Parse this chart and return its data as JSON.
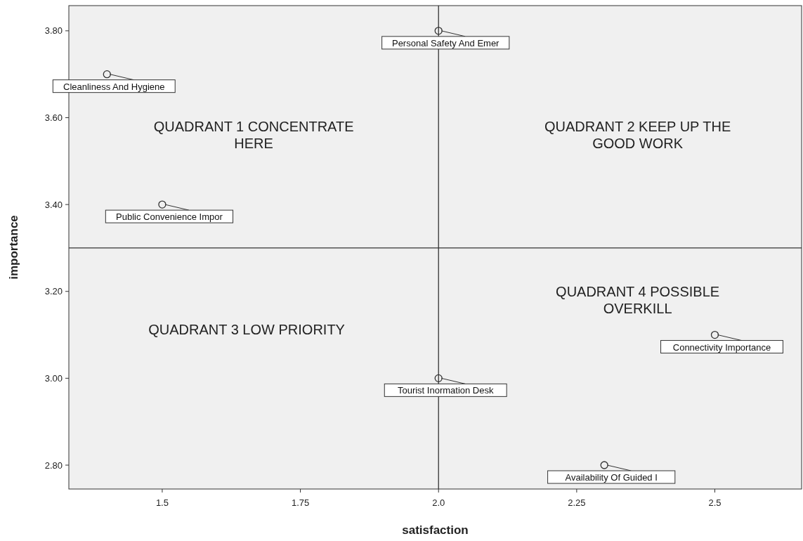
{
  "chart_data": {
    "type": "scatter",
    "xlabel": "satisfaction",
    "ylabel": "importance",
    "x": [
      2.0,
      1.4,
      1.5,
      2.5,
      2.0,
      2.3
    ],
    "values": [
      3.8,
      3.7,
      3.4,
      3.1,
      3.0,
      2.8
    ],
    "color": "#333333",
    "marker": "circle",
    "grid": false,
    "xlim": [
      1.331,
      2.657
    ],
    "ylim": [
      2.745,
      3.858
    ],
    "xticks": [
      1.5,
      1.75,
      {
        "value": 2.0,
        "label": "2.0"
      },
      2.25,
      2.5
    ],
    "yticks": [
      {
        "value": 2.8,
        "label": "2.80"
      },
      {
        "value": 3.0,
        "label": "3.00"
      },
      {
        "value": 3.2,
        "label": "3.20"
      },
      {
        "value": 3.4,
        "label": "3.40"
      },
      {
        "value": 3.6,
        "label": "3.60"
      },
      {
        "value": 3.8,
        "label": "3.80"
      }
    ],
    "ref_lines": [
      {
        "axis": "x",
        "value": 2.0
      },
      {
        "axis": "y",
        "value": 3.3
      }
    ],
    "annotations": [
      "QUADRANT 1 CONCENTRATE HERE",
      "QUADRANT 2 KEEP UP THE GOOD WORK",
      "QUADRANT 3 LOW PRIORITY",
      "QUADRANT 4 POSSIBLE OVERKILL",
      {
        "text": "Personal Safety And Emer",
        "x": 2.0,
        "y": 3.8
      },
      {
        "text": "Cleanliness And Hygiene",
        "x": 1.4,
        "y": 3.7
      },
      {
        "text": "Public Convenience Impor",
        "x": 1.5,
        "y": 3.4
      },
      {
        "text": "Connectivity Importance",
        "x": 2.5,
        "y": 3.1
      },
      {
        "text": "Tourist Inormation Desk",
        "x": 2.0,
        "y": 3.0
      },
      {
        "text": "Availability Of Guided I",
        "x": 2.3,
        "y": 2.8
      }
    ]
  }
}
